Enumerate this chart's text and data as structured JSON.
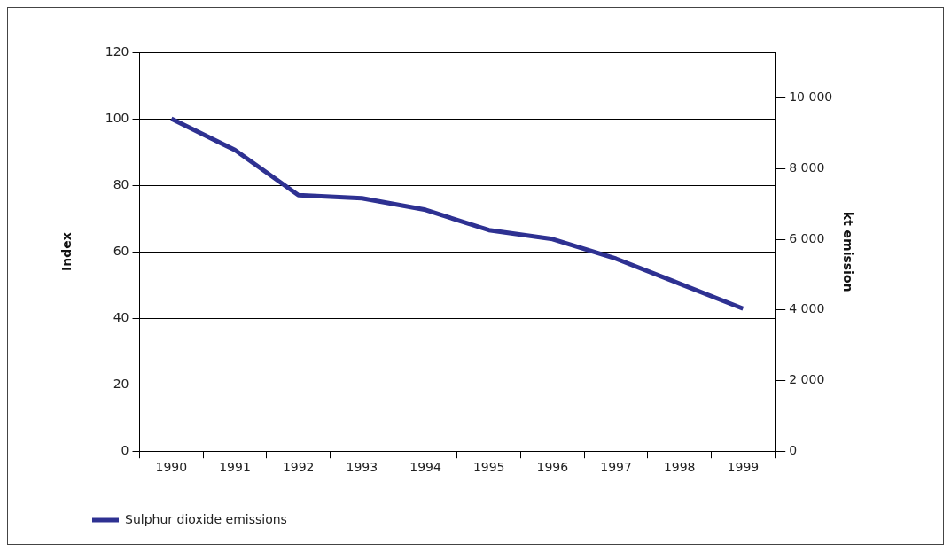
{
  "chart_data": {
    "type": "line",
    "ylabel": "Index",
    "y2label": "kt emission",
    "categories": [
      "1990",
      "1991",
      "1992",
      "1993",
      "1994",
      "1995",
      "1996",
      "1997",
      "1998",
      "1999"
    ],
    "series": [
      {
        "name": "Sulphur dioxide emissions",
        "color": "#2e3192",
        "values": [
          100,
          90.6,
          77.0,
          76.1,
          72.6,
          66.5,
          63.8,
          57.9,
          50.4,
          42.9
        ]
      }
    ],
    "ylim": [
      0,
      120
    ],
    "yticks": [
      0,
      20,
      40,
      60,
      80,
      100,
      120
    ],
    "y2lim": [
      0,
      11300
    ],
    "y2ticks": [
      {
        "value": 0,
        "label": "0"
      },
      {
        "value": 2000,
        "label": "2 000"
      },
      {
        "value": 4000,
        "label": "4 000"
      },
      {
        "value": 6000,
        "label": "6 000"
      },
      {
        "value": 8000,
        "label": "8 000"
      },
      {
        "value": 10000,
        "label": "10 000"
      }
    ],
    "grid": "y",
    "legend": "bottom left",
    "marker": "none",
    "line_style": "solid"
  }
}
